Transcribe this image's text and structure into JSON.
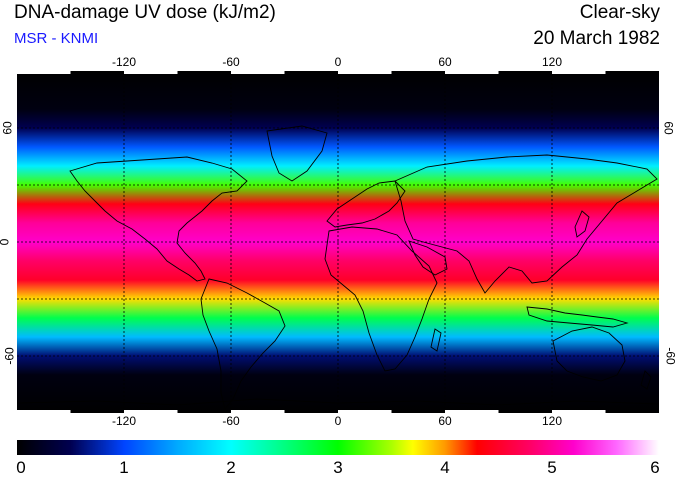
{
  "header": {
    "title": "DNA-damage UV dose (kJ/m2)",
    "credit": "MSR - KNMI",
    "sky_condition": "Clear-sky",
    "date": "20 March 1982"
  },
  "colors": {
    "credit": "#1a1aff",
    "ocean_background": "#000000",
    "coastline": "#000000",
    "gridline": "#000000"
  },
  "map": {
    "projection": "equirectangular",
    "lon_range": [
      -180,
      180
    ],
    "lat_range": [
      -90,
      90
    ],
    "grid": "dashed",
    "lon_ticks": [
      {
        "value": -120,
        "label": "-120"
      },
      {
        "value": -60,
        "label": "-60"
      },
      {
        "value": 0,
        "label": "0"
      },
      {
        "value": 60,
        "label": "60"
      },
      {
        "value": 120,
        "label": "120"
      }
    ],
    "lat_ticks_left": [
      {
        "value": 60,
        "label": "60"
      },
      {
        "value": 0,
        "label": "0"
      },
      {
        "value": -60,
        "label": "-60"
      }
    ],
    "lat_ticks_right": [
      {
        "value": 60,
        "label": "60"
      },
      {
        "value": -60,
        "label": "-60"
      }
    ]
  },
  "colorbar": {
    "min": 0,
    "max": 6,
    "tick_labels": [
      "0",
      "1",
      "2",
      "3",
      "4",
      "5",
      "6"
    ],
    "stops": [
      {
        "value": 0.0,
        "color": "#000000"
      },
      {
        "value": 0.5,
        "color": "#000050"
      },
      {
        "value": 1.0,
        "color": "#0044ff"
      },
      {
        "value": 1.5,
        "color": "#00aaff"
      },
      {
        "value": 2.0,
        "color": "#00ffff"
      },
      {
        "value": 2.5,
        "color": "#00ff80"
      },
      {
        "value": 3.0,
        "color": "#00ff00"
      },
      {
        "value": 3.5,
        "color": "#aaff00"
      },
      {
        "value": 3.7,
        "color": "#ffff00"
      },
      {
        "value": 4.0,
        "color": "#ff9900"
      },
      {
        "value": 4.3,
        "color": "#ff0000"
      },
      {
        "value": 4.8,
        "color": "#ff0066"
      },
      {
        "value": 5.2,
        "color": "#ff00cc"
      },
      {
        "value": 5.6,
        "color": "#ff66ff"
      },
      {
        "value": 6.0,
        "color": "#ffffff"
      }
    ]
  },
  "dose_profile": {
    "latitudes": [
      -90,
      -70,
      -60,
      -50,
      -40,
      -30,
      -20,
      -10,
      0,
      10,
      20,
      30,
      40,
      50,
      60,
      70,
      90
    ],
    "doses": [
      0.0,
      0.1,
      0.6,
      1.6,
      2.7,
      3.8,
      4.5,
      4.8,
      5.2,
      5.0,
      4.4,
      3.2,
      1.9,
      1.1,
      0.5,
      0.1,
      0.0
    ]
  }
}
